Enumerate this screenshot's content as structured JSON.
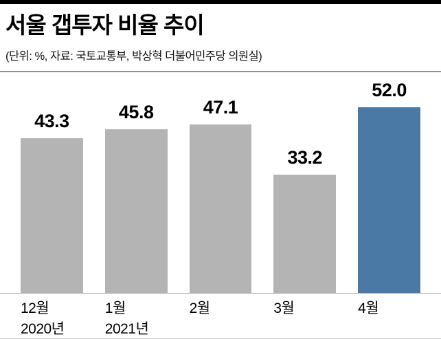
{
  "header": {
    "title": "서울 갭투자 비율 추이",
    "subtitle": "(단위: %, 자료: 국토교통부, 박상혁 더불어민주당 의원실)"
  },
  "chart_data": {
    "type": "bar",
    "title": "서울 갭투자 비율 추이",
    "unit_note": "단위: %",
    "source_note": "자료: 국토교통부, 박상혁 더불어민주당 의원실",
    "categories": [
      "12월",
      "1월",
      "2월",
      "3월",
      "4월"
    ],
    "category_sublabels": [
      "2020년",
      "2021년",
      "",
      "",
      ""
    ],
    "values": [
      43.3,
      45.8,
      47.1,
      33.2,
      52.0
    ],
    "value_labels": [
      "43.3",
      "45.8",
      "47.1",
      "33.2",
      "52.0"
    ],
    "xlabel": "",
    "ylabel": "",
    "ylim": [
      0,
      55
    ],
    "grid": false,
    "legend": false,
    "highlight_index": 4,
    "colors": {
      "bar": "#b4b4b4",
      "highlight": "#4a79a5",
      "title": "#000000",
      "rule": "#000000"
    }
  }
}
